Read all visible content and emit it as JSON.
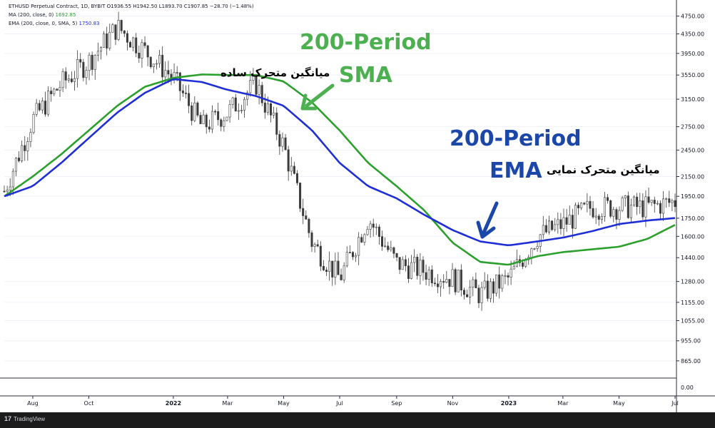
{
  "header": {
    "line1": "ETHUSD Perpetual Contract, 1D, BYBIT  O1936.55  H1942.50  L1893.70  C1907.85  −28.70 (−1.48%)",
    "ma_label": "MA (200, close, 0)",
    "ma_value": "1692.85",
    "ema_label": "EMA (200, close, 0, SMA, 5)",
    "ema_value": "1750.83"
  },
  "annotations": {
    "sma_title_line1": "200-Period",
    "sma_title_line2": "SMA",
    "sma_persian": "میانگین متحرک ساده",
    "ema_title_line1": "200-Period",
    "ema_title": "EMA",
    "ema_persian": "میانگین متحرک نمایی"
  },
  "footer": {
    "logo_text": "TradingView"
  },
  "colors": {
    "sma": "#2ca02c",
    "ema": "#1f2fd6",
    "arrow_green": "#4caf50",
    "arrow_blue": "#1a47a8",
    "candle": "#3b3b3b"
  },
  "chart_data": {
    "type": "line",
    "title": "ETHUSD Perpetual Contract, 1D, BYBIT",
    "y_scale": "log",
    "ylim": [
      800,
      5000
    ],
    "x_ticks": [
      "Aug",
      "Oct",
      "2022",
      "Mar",
      "May",
      "Jul",
      "Sep",
      "Nov",
      "2023",
      "Mar",
      "May",
      "Jul"
    ],
    "y_ticks": [
      "4750.00",
      "4350.00",
      "3950.00",
      "3550.00",
      "3150.00",
      "2750.00",
      "2450.00",
      "2150.00",
      "1950.00",
      "1750.00",
      "1600.00",
      "1440.00",
      "1280.00",
      "1155.00",
      "1055.00",
      "955.00",
      "865.00"
    ],
    "lower_pane_ticks": [
      "0.00"
    ],
    "x": [
      "2021-07-01",
      "2021-08-01",
      "2021-09-01",
      "2021-10-01",
      "2021-11-01",
      "2021-12-01",
      "2022-01-01",
      "2022-02-01",
      "2022-03-01",
      "2022-04-01",
      "2022-05-01",
      "2022-06-01",
      "2022-07-01",
      "2022-08-01",
      "2022-09-01",
      "2022-10-01",
      "2022-11-01",
      "2022-12-01",
      "2023-01-01",
      "2023-02-01",
      "2023-03-01",
      "2023-04-01",
      "2023-05-01",
      "2023-06-01",
      "2023-07-01"
    ],
    "series": [
      {
        "name": "ETHUSD",
        "values": [
          2000,
          2850,
          3400,
          3800,
          4500,
          4000,
          3500,
          2750,
          2950,
          3400,
          2500,
          1550,
          1300,
          1750,
          1400,
          1350,
          1300,
          1200,
          1300,
          1600,
          1700,
          1850,
          1850,
          1850,
          1900
        ]
      },
      {
        "name": "MA (200, close, 0)",
        "values": [
          1950,
          2150,
          2400,
          2700,
          3050,
          3350,
          3500,
          3560,
          3550,
          3550,
          3440,
          3100,
          2700,
          2300,
          2050,
          1820,
          1550,
          1410,
          1390,
          1450,
          1480,
          1500,
          1520,
          1580,
          1693
        ]
      },
      {
        "name": "EMA (200, close, 0, SMA, 5)",
        "values": [
          1950,
          2050,
          2300,
          2600,
          2950,
          3250,
          3480,
          3430,
          3300,
          3200,
          3050,
          2700,
          2300,
          2050,
          1930,
          1780,
          1650,
          1560,
          1530,
          1560,
          1590,
          1640,
          1700,
          1730,
          1751
        ]
      }
    ],
    "legend": "top-left"
  }
}
